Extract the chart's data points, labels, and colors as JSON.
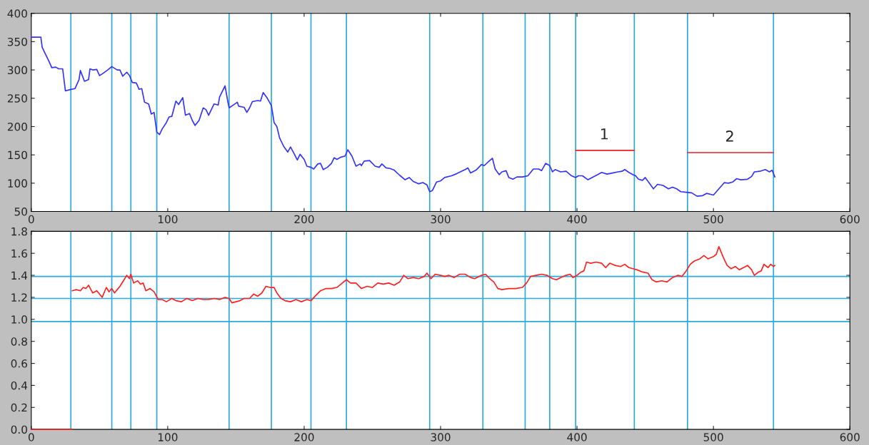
{
  "chart_data": [
    {
      "type": "line",
      "xlim": [
        0,
        600
      ],
      "xticks": [
        0,
        100,
        200,
        300,
        400,
        500,
        600
      ],
      "ylim": [
        50,
        400
      ],
      "yticks": [
        50,
        100,
        150,
        200,
        250,
        300,
        350,
        400
      ],
      "grid": false,
      "legend": false,
      "series": [
        {
          "color": "#3333ff",
          "x": [
            0,
            7,
            8,
            10,
            13,
            15,
            18,
            20,
            23,
            25,
            28,
            32,
            35,
            36,
            39,
            42,
            43,
            45,
            48,
            50,
            52,
            56,
            59,
            63,
            65,
            67,
            70,
            72,
            74,
            77,
            79,
            81,
            83,
            86,
            88,
            90,
            92,
            94,
            96,
            99,
            101,
            103,
            106,
            108,
            111,
            113,
            116,
            118,
            120,
            123,
            126,
            128,
            130,
            134,
            137,
            138,
            142,
            144,
            145,
            148,
            151,
            152,
            156,
            158,
            160,
            162,
            166,
            168,
            170,
            173,
            176,
            178,
            180,
            182,
            185,
            188,
            190,
            192,
            195,
            197,
            200,
            202,
            205,
            207,
            210,
            212,
            214,
            217,
            220,
            222,
            224,
            227,
            230,
            232,
            235,
            238,
            241,
            242,
            244,
            248,
            252,
            255,
            257,
            260,
            263,
            266,
            270,
            274,
            277,
            280,
            284,
            287,
            290,
            292,
            294,
            297,
            300,
            303,
            308,
            312,
            318,
            320,
            322,
            326,
            330,
            332,
            336,
            338,
            340,
            343,
            345,
            348,
            350,
            353,
            356,
            360,
            364,
            368,
            370,
            372,
            374,
            377,
            380,
            382,
            384,
            388,
            392,
            396,
            399,
            401,
            404,
            408,
            411,
            415,
            418,
            422,
            426,
            430,
            433,
            435,
            438,
            441,
            443,
            445,
            448,
            450,
            453,
            456,
            459,
            463,
            467,
            470,
            473,
            476,
            480,
            484,
            488,
            492,
            495,
            500,
            504,
            508,
            511,
            514,
            517,
            520,
            525,
            528,
            530,
            534,
            538,
            541,
            543,
            545
          ],
          "values": [
            358,
            358,
            340,
            330,
            315,
            304,
            305,
            302,
            302,
            263,
            265,
            267,
            283,
            299,
            280,
            283,
            302,
            300,
            301,
            290,
            293,
            300,
            306,
            300,
            300,
            289,
            296,
            290,
            278,
            277,
            266,
            267,
            243,
            240,
            222,
            225,
            190,
            186,
            196,
            207,
            217,
            218,
            245,
            239,
            251,
            220,
            223,
            211,
            202,
            211,
            233,
            230,
            220,
            240,
            238,
            252,
            272,
            245,
            233,
            238,
            243,
            236,
            234,
            225,
            233,
            244,
            246,
            245,
            260,
            250,
            237,
            207,
            200,
            180,
            165,
            155,
            164,
            155,
            141,
            151,
            142,
            130,
            128,
            125,
            134,
            135,
            124,
            128,
            135,
            145,
            142,
            146,
            148,
            159,
            148,
            130,
            134,
            131,
            139,
            140,
            130,
            128,
            134,
            127,
            126,
            123,
            114,
            106,
            110,
            103,
            99,
            101,
            97,
            85,
            87,
            102,
            104,
            110,
            113,
            117,
            124,
            127,
            118,
            123,
            133,
            131,
            140,
            144,
            125,
            115,
            120,
            122,
            110,
            107,
            111,
            111,
            113,
            125,
            125,
            125,
            122,
            135,
            131,
            120,
            124,
            120,
            121,
            113,
            110,
            113,
            113,
            106,
            110,
            115,
            119,
            116,
            118,
            120,
            121,
            124,
            119,
            115,
            113,
            107,
            105,
            110,
            100,
            90,
            98,
            96,
            90,
            93,
            90,
            85,
            84,
            83,
            77,
            78,
            82,
            79,
            90,
            101,
            100,
            102,
            108,
            106,
            107,
            112,
            120,
            121,
            124,
            120,
            123,
            111
          ]
        },
        {
          "color": "#ee1c25",
          "x": [
            399,
            442
          ],
          "values": [
            158,
            158
          ]
        },
        {
          "color": "#ee1c25",
          "x": [
            481,
            544
          ],
          "values": [
            154,
            154
          ]
        }
      ],
      "annotations": [
        {
          "text": "1",
          "x": 420,
          "y": 158
        },
        {
          "text": "2",
          "x": 512,
          "y": 154
        }
      ],
      "ref_lines": [
        {
          "axis": "x",
          "value": 29,
          "color": "#29abe2"
        },
        {
          "axis": "x",
          "value": 59,
          "color": "#29abe2"
        },
        {
          "axis": "x",
          "value": 73,
          "color": "#29abe2"
        },
        {
          "axis": "x",
          "value": 92,
          "color": "#29abe2"
        },
        {
          "axis": "x",
          "value": 145,
          "color": "#29abe2"
        },
        {
          "axis": "x",
          "value": 176,
          "color": "#29abe2"
        },
        {
          "axis": "x",
          "value": 205,
          "color": "#29abe2"
        },
        {
          "axis": "x",
          "value": 231,
          "color": "#29abe2"
        },
        {
          "axis": "x",
          "value": 292,
          "color": "#29abe2"
        },
        {
          "axis": "x",
          "value": 331,
          "color": "#29abe2"
        },
        {
          "axis": "x",
          "value": 362,
          "color": "#29abe2"
        },
        {
          "axis": "x",
          "value": 380,
          "color": "#29abe2"
        },
        {
          "axis": "x",
          "value": 399,
          "color": "#29abe2"
        },
        {
          "axis": "x",
          "value": 442,
          "color": "#29abe2"
        },
        {
          "axis": "x",
          "value": 481,
          "color": "#29abe2"
        },
        {
          "axis": "x",
          "value": 544,
          "color": "#29abe2"
        }
      ]
    },
    {
      "type": "line",
      "xlim": [
        0,
        600
      ],
      "xticks": [
        0,
        100,
        200,
        300,
        400,
        500,
        600
      ],
      "ylim": [
        0,
        1.8
      ],
      "yticks": [
        {
          "value": 0,
          "label": "0.0"
        },
        0.2,
        0.4,
        0.6,
        0.8,
        {
          "value": 1,
          "label": "1.0"
        },
        1.2,
        1.4,
        1.6,
        1.8
      ],
      "grid": false,
      "legend": false,
      "series": [
        {
          "color": "#ff2020",
          "x": [
            30,
            33,
            36,
            38,
            40,
            42,
            45,
            48,
            50,
            52,
            55,
            57,
            59,
            61,
            63,
            65,
            68,
            70,
            72,
            73,
            75,
            78,
            80,
            82,
            84,
            87,
            90,
            93,
            96,
            99,
            103,
            106,
            110,
            114,
            118,
            122,
            126,
            130,
            134,
            138,
            142,
            145,
            147,
            150,
            153,
            156,
            160,
            163,
            166,
            169,
            172,
            175,
            178,
            180,
            183,
            186,
            190,
            194,
            198,
            202,
            205,
            208,
            212,
            216,
            220,
            224,
            228,
            231,
            234,
            238,
            242,
            246,
            250,
            254,
            258,
            262,
            266,
            270,
            273,
            276,
            280,
            284,
            288,
            290,
            293,
            296,
            300,
            303,
            306,
            310,
            314,
            318,
            322,
            325,
            330,
            333,
            336,
            339,
            342,
            345,
            350,
            355,
            360,
            363,
            366,
            370,
            374,
            378,
            382,
            385,
            388,
            392,
            395,
            397,
            400,
            403,
            405,
            407,
            410,
            414,
            418,
            421,
            424,
            428,
            432,
            435,
            438,
            441,
            444,
            448,
            452,
            455,
            458,
            462,
            466,
            470,
            474,
            477,
            480,
            483,
            486,
            490,
            493,
            496,
            500,
            502,
            504,
            507,
            510,
            513,
            516,
            519,
            522,
            525,
            528,
            530,
            533,
            535,
            537,
            540,
            542,
            544,
            545
          ],
          "values": [
            1.26,
            1.27,
            1.26,
            1.29,
            1.28,
            1.31,
            1.24,
            1.26,
            1.23,
            1.2,
            1.29,
            1.25,
            1.28,
            1.24,
            1.27,
            1.3,
            1.36,
            1.4,
            1.37,
            1.41,
            1.33,
            1.35,
            1.32,
            1.33,
            1.26,
            1.28,
            1.25,
            1.18,
            1.18,
            1.16,
            1.19,
            1.17,
            1.16,
            1.19,
            1.17,
            1.19,
            1.18,
            1.18,
            1.19,
            1.18,
            1.2,
            1.19,
            1.15,
            1.16,
            1.17,
            1.19,
            1.19,
            1.23,
            1.21,
            1.24,
            1.3,
            1.29,
            1.29,
            1.24,
            1.19,
            1.17,
            1.16,
            1.18,
            1.16,
            1.18,
            1.17,
            1.21,
            1.26,
            1.28,
            1.28,
            1.29,
            1.33,
            1.36,
            1.33,
            1.33,
            1.28,
            1.3,
            1.29,
            1.33,
            1.32,
            1.33,
            1.31,
            1.34,
            1.4,
            1.37,
            1.38,
            1.37,
            1.39,
            1.42,
            1.37,
            1.41,
            1.4,
            1.39,
            1.4,
            1.38,
            1.41,
            1.41,
            1.38,
            1.37,
            1.4,
            1.41,
            1.37,
            1.34,
            1.28,
            1.27,
            1.28,
            1.28,
            1.29,
            1.33,
            1.39,
            1.4,
            1.41,
            1.4,
            1.37,
            1.36,
            1.38,
            1.4,
            1.41,
            1.38,
            1.4,
            1.43,
            1.44,
            1.52,
            1.51,
            1.52,
            1.51,
            1.47,
            1.51,
            1.49,
            1.48,
            1.5,
            1.47,
            1.46,
            1.45,
            1.43,
            1.42,
            1.36,
            1.34,
            1.35,
            1.34,
            1.38,
            1.4,
            1.39,
            1.44,
            1.5,
            1.53,
            1.55,
            1.58,
            1.55,
            1.57,
            1.59,
            1.66,
            1.57,
            1.49,
            1.46,
            1.48,
            1.45,
            1.47,
            1.49,
            1.45,
            1.4,
            1.43,
            1.44,
            1.5,
            1.47,
            1.5,
            1.48,
            1.49
          ]
        },
        {
          "color": "#ee1c25",
          "x": [
            0,
            30
          ],
          "values": [
            0,
            0
          ]
        }
      ],
      "ref_lines": [
        {
          "axis": "y",
          "value": 1.39,
          "color": "#29abe2"
        },
        {
          "axis": "y",
          "value": 1.19,
          "color": "#29abe2"
        },
        {
          "axis": "y",
          "value": 0.98,
          "color": "#29abe2"
        },
        {
          "axis": "x",
          "value": 29,
          "color": "#29abe2"
        },
        {
          "axis": "x",
          "value": 59,
          "color": "#29abe2"
        },
        {
          "axis": "x",
          "value": 73,
          "color": "#29abe2"
        },
        {
          "axis": "x",
          "value": 92,
          "color": "#29abe2"
        },
        {
          "axis": "x",
          "value": 145,
          "color": "#29abe2"
        },
        {
          "axis": "x",
          "value": 176,
          "color": "#29abe2"
        },
        {
          "axis": "x",
          "value": 205,
          "color": "#29abe2"
        },
        {
          "axis": "x",
          "value": 231,
          "color": "#29abe2"
        },
        {
          "axis": "x",
          "value": 292,
          "color": "#29abe2"
        },
        {
          "axis": "x",
          "value": 331,
          "color": "#29abe2"
        },
        {
          "axis": "x",
          "value": 362,
          "color": "#29abe2"
        },
        {
          "axis": "x",
          "value": 380,
          "color": "#29abe2"
        },
        {
          "axis": "x",
          "value": 399,
          "color": "#29abe2"
        },
        {
          "axis": "x",
          "value": 442,
          "color": "#29abe2"
        },
        {
          "axis": "x",
          "value": 481,
          "color": "#29abe2"
        },
        {
          "axis": "x",
          "value": 544,
          "color": "#29abe2"
        }
      ]
    }
  ]
}
